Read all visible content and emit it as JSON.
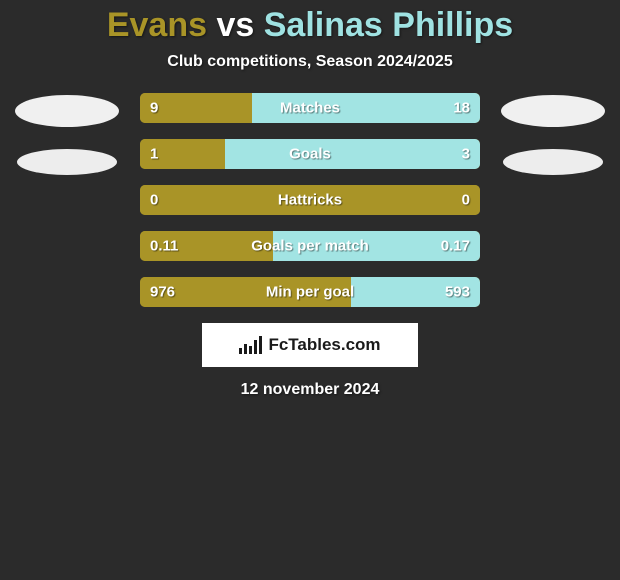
{
  "title": {
    "player1": "Evans",
    "vs": "vs",
    "player2": "Salinas Phillips",
    "player1_color": "#a99427",
    "player2_color": "#9fe2e2"
  },
  "subtitle": "Club competitions, Season 2024/2025",
  "colors": {
    "left": "#a99427",
    "right": "#a2e4e3",
    "background": "#2b2b2b"
  },
  "stats": [
    {
      "label": "Matches",
      "left_val": "9",
      "right_val": "18",
      "left_pct": 33,
      "right_pct": 67
    },
    {
      "label": "Goals",
      "left_val": "1",
      "right_val": "3",
      "left_pct": 25,
      "right_pct": 75
    },
    {
      "label": "Hattricks",
      "left_val": "0",
      "right_val": "0",
      "left_pct": 100,
      "right_pct": 0
    },
    {
      "label": "Goals per match",
      "left_val": "0.11",
      "right_val": "0.17",
      "left_pct": 39,
      "right_pct": 61
    },
    {
      "label": "Min per goal",
      "left_val": "976",
      "right_val": "593",
      "left_pct": 62,
      "right_pct": 38
    }
  ],
  "brand": "FcTables.com",
  "date": "12 november 2024"
}
